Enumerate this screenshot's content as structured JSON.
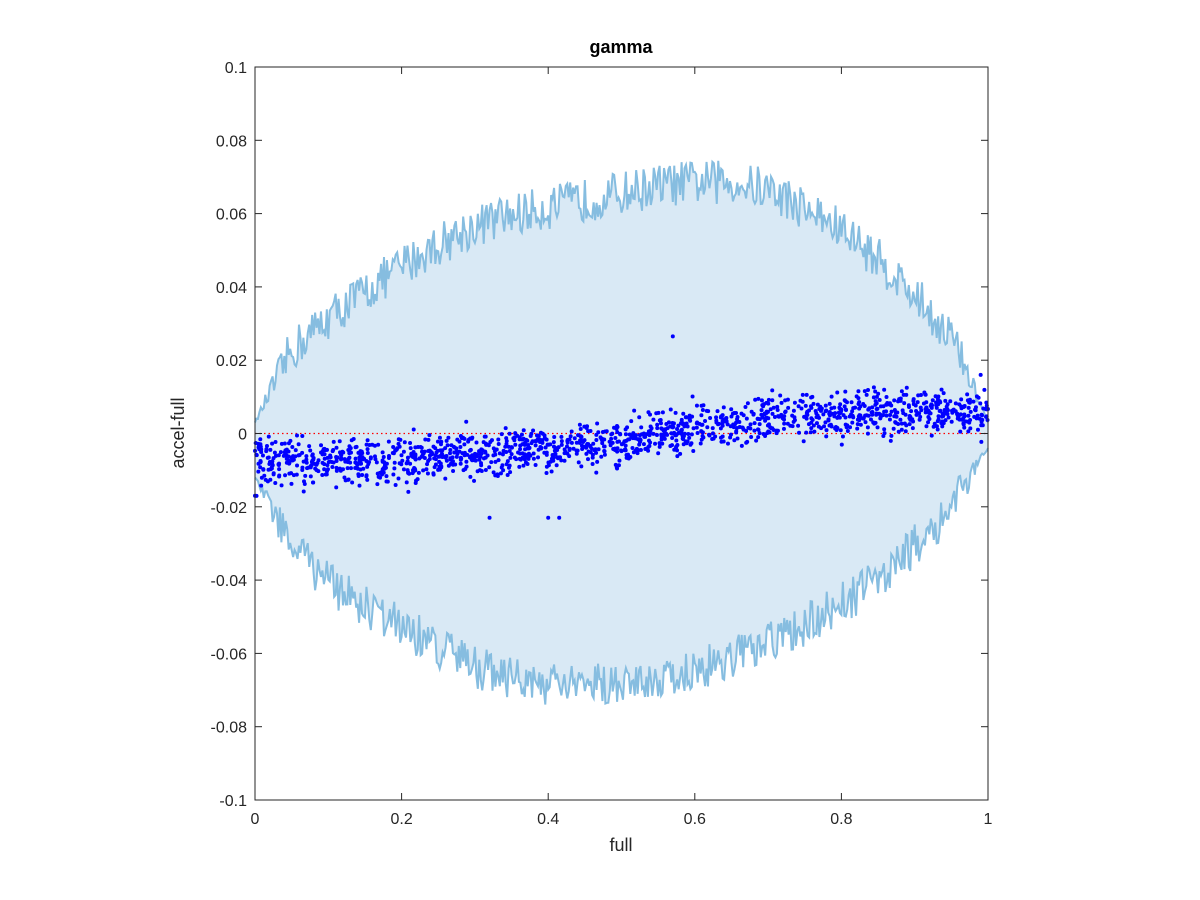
{
  "chart_data": {
    "type": "scatter",
    "title": "gamma",
    "xlabel": "full",
    "ylabel": "accel-full",
    "xlim": [
      0,
      1
    ],
    "ylim": [
      -0.1,
      0.1
    ],
    "xticks": [
      0,
      0.2,
      0.4,
      0.6,
      0.8,
      1
    ],
    "xtick_labels": [
      "0",
      "0.2",
      "0.4",
      "0.6",
      "0.8",
      "1"
    ],
    "yticks": [
      -0.1,
      -0.08,
      -0.06,
      -0.04,
      -0.02,
      0,
      0.02,
      0.04,
      0.06,
      0.08,
      0.1
    ],
    "ytick_labels": [
      "-0.1",
      "-0.08",
      "-0.06",
      "-0.04",
      "-0.02",
      "0",
      "0.02",
      "0.04",
      "0.06",
      "0.08",
      "0.1"
    ],
    "grid": false,
    "colors": {
      "band_fill": "#d9e9f5",
      "band_line": "#86bde0",
      "points": "#0000ff",
      "zero_line": "#ff0000",
      "axes": "#262626"
    },
    "band_envelope": {
      "x": [
        0,
        0.05,
        0.1,
        0.15,
        0.2,
        0.25,
        0.3,
        0.35,
        0.4,
        0.45,
        0.5,
        0.55,
        0.6,
        0.65,
        0.7,
        0.75,
        0.8,
        0.85,
        0.9,
        0.95,
        1.0
      ],
      "upper": [
        0.003,
        0.022,
        0.031,
        0.038,
        0.045,
        0.051,
        0.056,
        0.059,
        0.061,
        0.063,
        0.065,
        0.067,
        0.068,
        0.068,
        0.066,
        0.061,
        0.055,
        0.047,
        0.037,
        0.026,
        0.003
      ],
      "lower": [
        -0.012,
        -0.03,
        -0.04,
        -0.047,
        -0.052,
        -0.058,
        -0.063,
        -0.066,
        -0.068,
        -0.068,
        -0.067,
        -0.066,
        -0.064,
        -0.061,
        -0.057,
        -0.052,
        -0.046,
        -0.039,
        -0.03,
        -0.02,
        -0.004
      ],
      "noise_amplitude": 0.006
    },
    "zero_line_y": 0,
    "scatter_trend": {
      "x": [
        0,
        0.1,
        0.2,
        0.3,
        0.4,
        0.5,
        0.6,
        0.7,
        0.8,
        0.9,
        1.0
      ],
      "y": [
        -0.007,
        -0.008,
        -0.007,
        -0.006,
        -0.004,
        -0.002,
        0.001,
        0.004,
        0.005,
        0.006,
        0.005
      ],
      "spread": 0.005
    },
    "scatter_points_count": 1500,
    "notable_points": [
      {
        "x": 0.57,
        "y": 0.0265
      },
      {
        "x": 0.0,
        "y": -0.017
      },
      {
        "x": 0.32,
        "y": -0.023
      },
      {
        "x": 0.4,
        "y": -0.023
      },
      {
        "x": 0.415,
        "y": -0.023
      },
      {
        "x": 0.99,
        "y": 0.016
      }
    ]
  }
}
